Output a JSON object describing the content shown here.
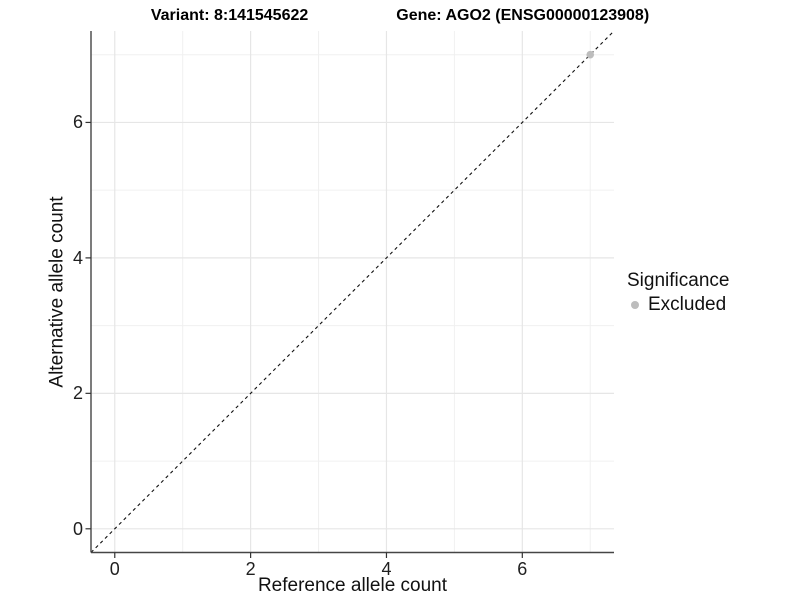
{
  "header": {
    "variant_title": "Variant: 8:141545622",
    "gene_title": "Gene: AGO2 (ENSG00000123908)"
  },
  "chart_data": {
    "type": "scatter",
    "title": "Variant: 8:141545622   Gene: AGO2 (ENSG00000123908)",
    "xlabel": "Reference allele count",
    "ylabel": "Alternative allele count",
    "xlim": [
      -0.35,
      7.35
    ],
    "ylim": [
      -0.35,
      7.35
    ],
    "x_ticks": [
      0,
      2,
      4,
      6
    ],
    "y_ticks": [
      0,
      2,
      4,
      6
    ],
    "x_minor_ticks": [
      1,
      3,
      5,
      7
    ],
    "y_minor_ticks": [
      1,
      3,
      5,
      7
    ],
    "grid": "major and minor, light gray on white panel",
    "series": [
      {
        "name": "Excluded",
        "color": "#bdbdbd",
        "points": [
          [
            7,
            7
          ]
        ]
      }
    ],
    "reference_line": {
      "kind": "identity y=x",
      "style": "dashed",
      "color": "#111111"
    },
    "legend": {
      "title": "Significance",
      "position": "right",
      "entries": [
        {
          "label": "Excluded",
          "color": "#bdbdbd",
          "marker": "circle"
        }
      ]
    }
  },
  "colors": {
    "background": "#ffffff",
    "grid_major": "#e6e6e6",
    "grid_minor": "#f0f0f0",
    "axis_line": "#454545",
    "tick_mark": "#333333",
    "point": "#bdbdbd",
    "text": "#1f1f1f"
  }
}
